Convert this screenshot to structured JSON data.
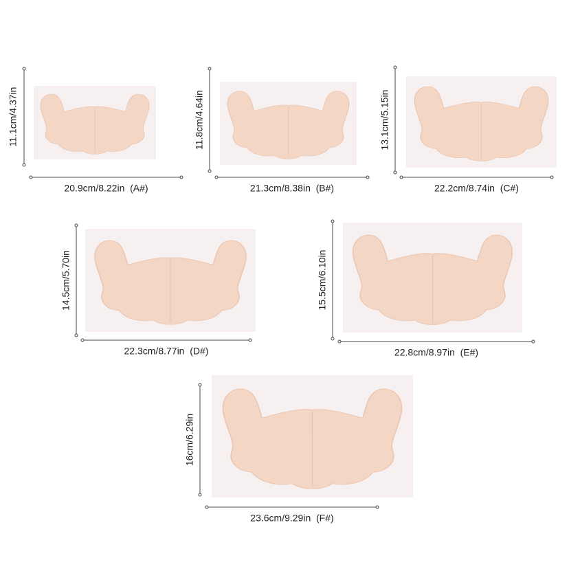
{
  "items": [
    {
      "height_label": "11.1cm/4.37in",
      "width_label": "20.9cm/8.22in  (A#)"
    },
    {
      "height_label": "11.8cm/4.64in",
      "width_label": "21.3cm/8.38in  (B#)"
    },
    {
      "height_label": "13.1cm/5.15in",
      "width_label": "22.2cm/8.74in  (C#)"
    },
    {
      "height_label": "14.5cm/5.70in",
      "width_label": "22.3cm/8.77in  (D#)"
    },
    {
      "height_label": "15.5cm/6.10in",
      "width_label": "22.8cm/8.97in  (E#)"
    },
    {
      "height_label": "16cm/6.29in",
      "width_label": "23.6cm/9.29in  (F#)"
    }
  ]
}
